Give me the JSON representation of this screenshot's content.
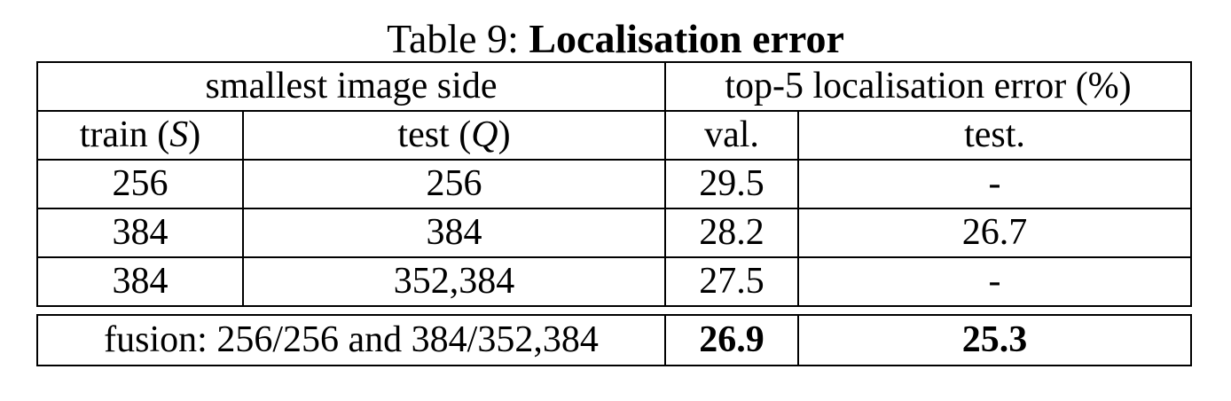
{
  "caption": {
    "prefix": "Table 9:",
    "title": "Localisation error"
  },
  "header": {
    "group_left": "smallest image side",
    "group_right": "top-5 localisation error (%)",
    "train_label": "train",
    "train_symbol": "S",
    "test_label": "test",
    "test_symbol": "Q",
    "val": "val.",
    "test_err": "test."
  },
  "rows": [
    {
      "train": "256",
      "test": "256",
      "val": "29.5",
      "test_err": "-"
    },
    {
      "train": "384",
      "test": "384",
      "val": "28.2",
      "test_err": "26.7"
    },
    {
      "train": "384",
      "test": "352,384",
      "val": "27.5",
      "test_err": "-"
    }
  ],
  "fusion": {
    "label": "fusion: 256/256 and 384/352,384",
    "val": "26.9",
    "test_err": "25.3"
  }
}
